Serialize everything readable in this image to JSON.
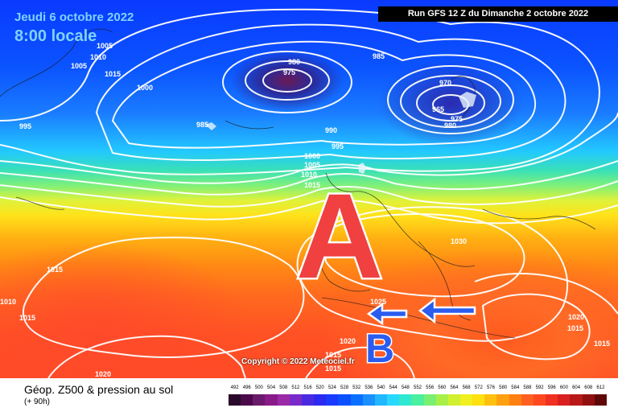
{
  "header": {
    "date": "Jeudi 6 octobre 2022",
    "time": "8:00 locale",
    "run": "Run GFS 12 Z du Dimanche 2 octobre 2022"
  },
  "copyright": "Copyright © 2022 Meteociel.fr",
  "annotations": {
    "high_letter": "A",
    "low_letter": "B",
    "arrow_color": "#2a5cf0",
    "high_color": "#f04040"
  },
  "isobar_labels": [
    "1005",
    "1015",
    "1010",
    "1005",
    "1000",
    "995",
    "980",
    "975",
    "985",
    "985",
    "990",
    "995",
    "970",
    "965",
    "975",
    "980",
    "1000",
    "1005",
    "1010",
    "1015",
    "1030",
    "1015",
    "1010",
    "1015",
    "1025",
    "1020",
    "1015",
    "1015",
    "1020",
    "1015",
    "1015",
    "1020"
  ],
  "legend": {
    "title": "Géop. Z500 & pression au sol",
    "subtitle": "(+ 90h)",
    "scale_values": [
      "492",
      "496",
      "500",
      "504",
      "508",
      "512",
      "516",
      "520",
      "524",
      "528",
      "532",
      "536",
      "540",
      "544",
      "548",
      "552",
      "556",
      "560",
      "564",
      "568",
      "572",
      "576",
      "580",
      "584",
      "588",
      "592",
      "596",
      "600",
      "604",
      "608",
      "612"
    ],
    "scale_colors": [
      "#2a0a2a",
      "#4a0a4a",
      "#6a1a6a",
      "#8a1a8a",
      "#9a2aa8",
      "#7a2ac8",
      "#4a2ae0",
      "#2a2af0",
      "#1a3aff",
      "#0a50ff",
      "#0a70ff",
      "#1a90ff",
      "#22b8ff",
      "#28d8ff",
      "#30e8d0",
      "#4af0a0",
      "#7af070",
      "#a8f048",
      "#d0f030",
      "#f0f020",
      "#ffe010",
      "#ffc010",
      "#ffa010",
      "#ff8010",
      "#ff6020",
      "#ff4820",
      "#f03020",
      "#d82020",
      "#b81818",
      "#901010",
      "#600808"
    ]
  }
}
